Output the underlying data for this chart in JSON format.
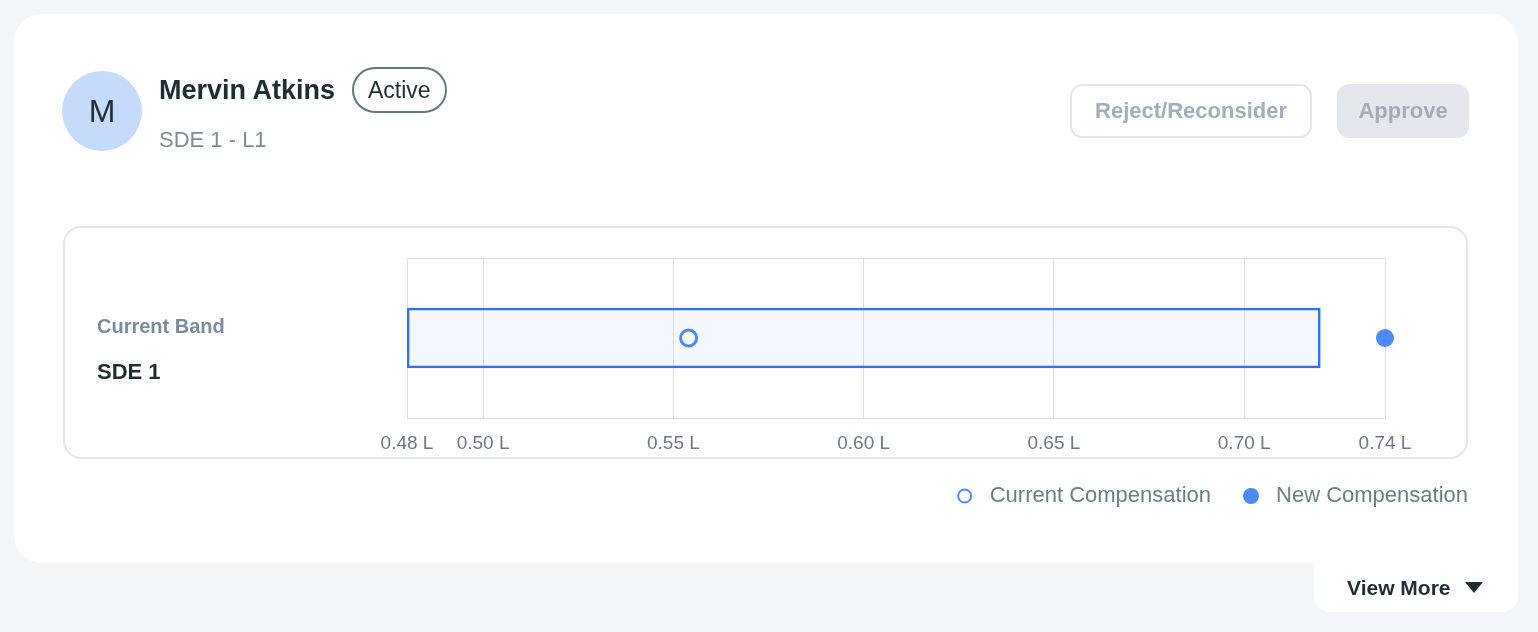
{
  "chart_data": {
    "type": "bar",
    "orientation": "horizontal",
    "title": "Mervin Atkins",
    "subtitle": "SDE 1 - L1",
    "categories": [
      null
    ],
    "series": [
      {
        "color": "#2f74e8",
        "base": [
          0.48
        ],
        "values": [
          0.24
        ]
      },
      {
        "name": "Current Compensation",
        "type": "scatter",
        "color": "#4d8af5",
        "values": [
          0.554
        ]
      },
      {
        "name": "New Compensation",
        "type": "scatter",
        "color": "#4d8af5",
        "values": [
          0.737
        ]
      }
    ],
    "xlim": [
      0.48,
      0.737
    ],
    "xticks": [
      {
        "value": 0.48,
        "label": "0.48 L"
      },
      {
        "value": 0.5,
        "label": "0.50 L"
      },
      {
        "value": 0.55,
        "label": "0.55 L"
      },
      {
        "value": 0.6,
        "label": "0.60 L"
      },
      {
        "value": 0.65,
        "label": "0.65 L"
      },
      {
        "value": 0.7,
        "label": "0.70 L"
      },
      {
        "value": 0.737,
        "label": "0.74 L"
      }
    ],
    "grid": "x",
    "legend": "bottom right",
    "marker": "circle",
    "annotations": [
      "M",
      "Active",
      "Reject/Reconsider",
      "Approve",
      "Current Band",
      "SDE 1",
      "View More"
    ]
  }
}
